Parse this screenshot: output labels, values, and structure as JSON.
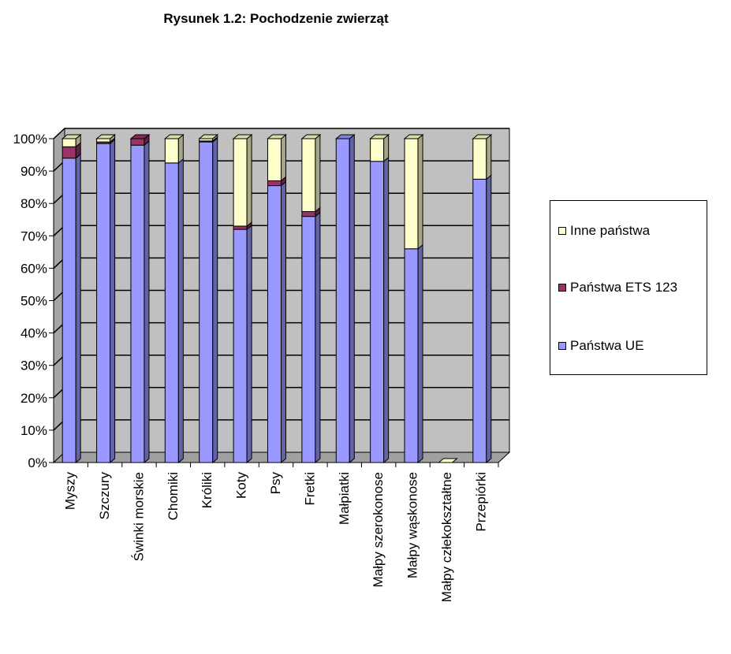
{
  "chart_data": {
    "type": "bar",
    "stacked": true,
    "percent_stacked": true,
    "title": "Rysunek 1.2:  Pochodzenie zwierząt",
    "xlabel": "",
    "ylabel": "",
    "ylim": [
      0,
      100
    ],
    "y_ticks": [
      "0%",
      "10%",
      "20%",
      "30%",
      "40%",
      "50%",
      "60%",
      "70%",
      "80%",
      "90%",
      "100%"
    ],
    "grid": true,
    "legend_position": "right",
    "categories": [
      "Myszy",
      "Szczury",
      "Świnki morskie",
      "Chomiki",
      "Króliki",
      "Koty",
      "Psy",
      "Fretki",
      "Małpiatki",
      "Małpy szerokonose",
      "Małpy wąskonose",
      "Małpy człekokształtne",
      "Przepiórki"
    ],
    "series": [
      {
        "name": "Państwa UE",
        "color": "#9999ff",
        "values": [
          94,
          98.5,
          98,
          92.5,
          99,
          72,
          85.5,
          76,
          100,
          93,
          66,
          0,
          87.5
        ]
      },
      {
        "name": "Państwa ETS 123",
        "color": "#993366",
        "values": [
          3.5,
          0.5,
          2,
          0,
          0.3,
          1,
          1.5,
          1.5,
          0,
          0,
          0,
          0,
          0
        ]
      },
      {
        "name": "Inne państwa",
        "color": "#ffffcc",
        "values": [
          2.5,
          1,
          0,
          7.5,
          0.7,
          27,
          13,
          22.5,
          0,
          7,
          34,
          0,
          12.5
        ]
      }
    ]
  },
  "legend": {
    "items": [
      {
        "label": "Inne państwa",
        "color": "#ffffcc"
      },
      {
        "label": "Państwa ETS 123",
        "color": "#993366"
      },
      {
        "label": "Państwa UE",
        "color": "#9999ff"
      }
    ]
  },
  "colors": {
    "plot_wall": "#c0c0c0",
    "floor": "#a0a0a0"
  }
}
